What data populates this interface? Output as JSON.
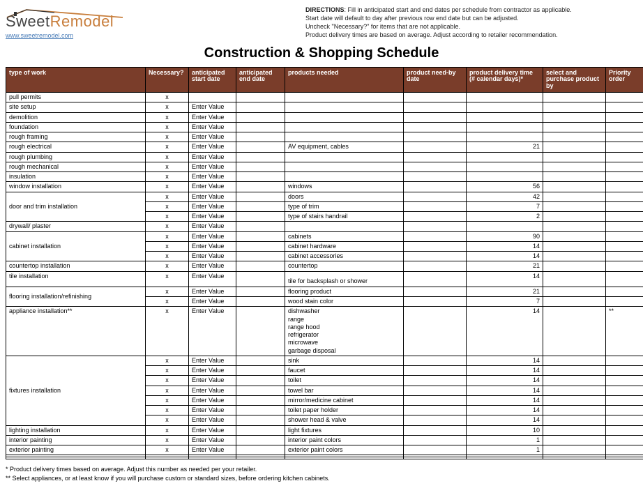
{
  "logo": {
    "brand_a": "Sweet",
    "brand_b": "Remodel",
    "url": "www.sweetremodel.com",
    "roof_color": "#c87e3c",
    "roof_dark": "#333333"
  },
  "directions": {
    "label": "DIRECTIONS",
    "lines": [
      "Fill in anticipated start and end dates per schedule from contractor as applicable.",
      "Start date will default to day after previous row end date but can be adjusted.",
      "Uncheck \"Necessary?\" for items that are not applicable.",
      "Product delivery times are based on average. Adjust according to retailer recommendation."
    ]
  },
  "title": "Construction & Shopping Schedule",
  "headers": {
    "work": "type of work",
    "necessary": "Necessary?",
    "astart": "anticipated start date",
    "aend": "anticipated end date",
    "products": "products needed",
    "needby": "product    need-by date",
    "delivery": "product delivery time (# calendar days)*",
    "select": "select and purchase product by",
    "priority": "Priority order"
  },
  "enter_value": "Enter Value",
  "x": "x",
  "rows": [
    {
      "work": "pull permits",
      "nec": "x",
      "astart": "",
      "prod": "",
      "deliv": "",
      "prio": ""
    },
    {
      "work": "site setup",
      "nec": "x",
      "astart": "Enter Value",
      "prod": "",
      "deliv": "",
      "prio": ""
    },
    {
      "work": "demolition",
      "nec": "x",
      "astart": "Enter Value",
      "prod": "",
      "deliv": "",
      "prio": ""
    },
    {
      "work": "foundation",
      "nec": "x",
      "astart": "Enter Value",
      "prod": "",
      "deliv": "",
      "prio": ""
    },
    {
      "work": "rough framing",
      "nec": "x",
      "astart": "Enter Value",
      "prod": "",
      "deliv": "",
      "prio": ""
    },
    {
      "work": "rough electrical",
      "nec": "x",
      "astart": "Enter Value",
      "prod": "AV equipment, cables",
      "deliv": "21",
      "prio": ""
    },
    {
      "work": "rough plumbing",
      "nec": "x",
      "astart": "Enter Value",
      "prod": "",
      "deliv": "",
      "prio": ""
    },
    {
      "work": "rough mechanical",
      "nec": "x",
      "astart": "Enter Value",
      "prod": "",
      "deliv": "",
      "prio": ""
    },
    {
      "work": "insulation",
      "nec": "x",
      "astart": "Enter Value",
      "prod": "",
      "deliv": "",
      "prio": ""
    },
    {
      "work": "window installation",
      "nec": "x",
      "astart": "Enter Value",
      "prod": "windows",
      "deliv": "56",
      "prio": ""
    },
    {
      "work": "door and trim installation",
      "rowspan": 3,
      "subrows": [
        {
          "nec": "x",
          "astart": "Enter Value",
          "prod": "doors",
          "deliv": "42"
        },
        {
          "nec": "x",
          "astart": "Enter Value",
          "prod": "type of trim",
          "deliv": "7"
        },
        {
          "nec": "x",
          "astart": "Enter Value",
          "prod": "type of stairs handrail",
          "deliv": "2"
        }
      ]
    },
    {
      "work": "drywall/ plaster",
      "nec": "x",
      "astart": "Enter Value",
      "prod": "",
      "deliv": "",
      "prio": ""
    },
    {
      "work": "cabinet installation",
      "rowspan": 3,
      "subrows": [
        {
          "nec": "x",
          "astart": "Enter Value",
          "prod": "cabinets",
          "deliv": "90"
        },
        {
          "nec": "x",
          "astart": "Enter Value",
          "prod": "cabinet hardware",
          "deliv": "14"
        },
        {
          "nec": "x",
          "astart": "Enter Value",
          "prod": "cabinet accessories",
          "deliv": "14"
        }
      ]
    },
    {
      "work": "countertop installation",
      "nec": "x",
      "astart": "Enter Value",
      "prod": "countertop",
      "deliv": "21",
      "prio": ""
    },
    {
      "work": "tile installation",
      "nec": "x",
      "astart": "Enter Value",
      "prod": "tile for backsplash or shower",
      "deliv": "14",
      "prio": "",
      "tallprod": true
    },
    {
      "work": "flooring installation/refinishing",
      "rowspan": 2,
      "subrows": [
        {
          "nec": "x",
          "astart": "Enter Value",
          "prod": "flooring product",
          "deliv": "21"
        },
        {
          "nec": "x",
          "astart": "Enter Value",
          "prod": "wood stain color",
          "deliv": "7"
        }
      ]
    },
    {
      "work": "appliance installation**",
      "nec": "x",
      "astart": "Enter Value",
      "prod": "dishwasher\nrange\nrange hood\nrefrigerator\nmicrowave\ngarbage disposal",
      "deliv": "14",
      "prio": "**"
    },
    {
      "work": "fixtures installation",
      "rowspan": 7,
      "subrows": [
        {
          "nec": "x",
          "astart": "Enter Value",
          "prod": "sink",
          "deliv": "14"
        },
        {
          "nec": "x",
          "astart": "Enter Value",
          "prod": "faucet",
          "deliv": "14"
        },
        {
          "nec": "x",
          "astart": "Enter Value",
          "prod": "toilet",
          "deliv": "14"
        },
        {
          "nec": "x",
          "astart": "Enter Value",
          "prod": "towel bar",
          "deliv": "14"
        },
        {
          "nec": "x",
          "astart": "Enter Value",
          "prod": "mirror/medicine cabinet",
          "deliv": "14"
        },
        {
          "nec": "x",
          "astart": "Enter Value",
          "prod": "toilet paper holder",
          "deliv": "14"
        },
        {
          "nec": "x",
          "astart": "Enter Value",
          "prod": "shower head & valve",
          "deliv": "14"
        }
      ]
    },
    {
      "work": "lighting installation",
      "nec": "x",
      "astart": "Enter Value",
      "prod": "light fixtures",
      "deliv": "10",
      "prio": ""
    },
    {
      "work": "interior painting",
      "nec": "x",
      "astart": "Enter Value",
      "prod": "interior paint colors",
      "deliv": "1",
      "prio": ""
    },
    {
      "work": "exterior painting",
      "nec": "x",
      "astart": "Enter Value",
      "prod": "exterior paint colors",
      "deliv": "1",
      "prio": ""
    },
    {
      "blank": true
    },
    {
      "blank": true
    }
  ],
  "footnotes": [
    "* Product delivery times based on average. Adjust this number as needed per your retailer.",
    "** Select appliances, or at least know if you will purchase custom or standard sizes, before ordering kitchen cabinets."
  ],
  "colors": {
    "header_bg": "#7a3d2a",
    "header_fg": "#ffffff",
    "border": "#000000"
  }
}
